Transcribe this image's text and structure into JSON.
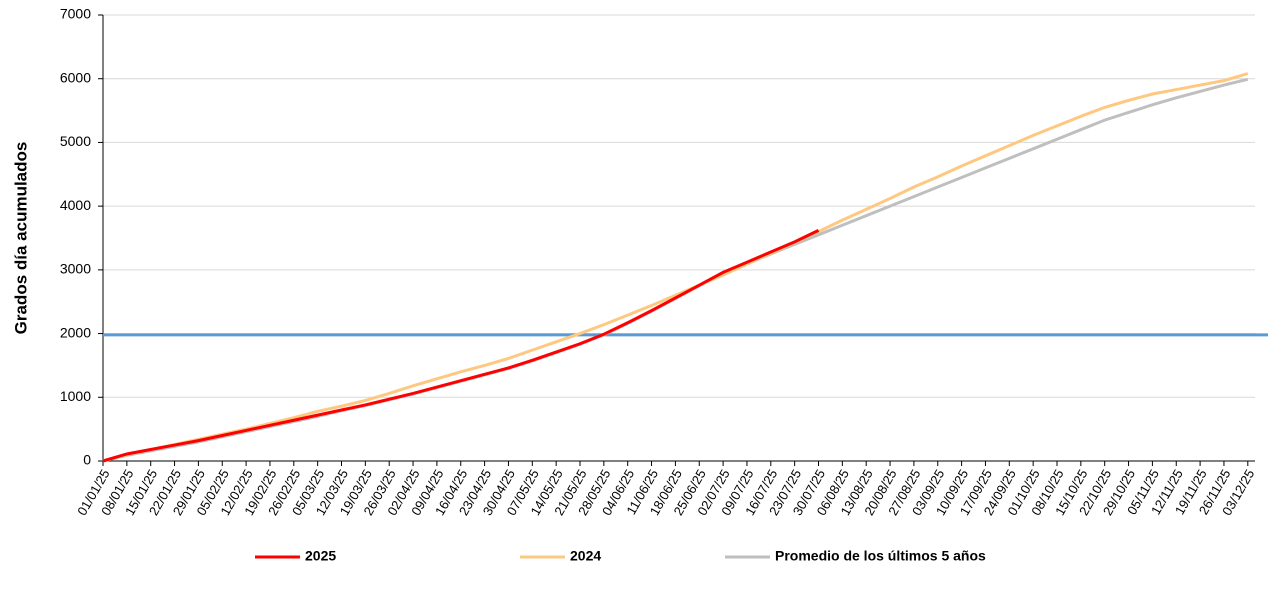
{
  "chart_data": {
    "type": "line",
    "ylabel": "Grados día acumulados",
    "categories": [
      "01/01/25",
      "08/01/25",
      "15/01/25",
      "22/01/25",
      "29/01/25",
      "05/02/25",
      "12/02/25",
      "19/02/25",
      "26/02/25",
      "05/03/25",
      "12/03/25",
      "19/03/25",
      "26/03/25",
      "02/04/25",
      "09/04/25",
      "16/04/25",
      "23/04/25",
      "30/04/25",
      "07/05/25",
      "14/05/25",
      "21/05/25",
      "28/05/25",
      "04/06/25",
      "11/06/25",
      "18/06/25",
      "25/06/25",
      "02/07/25",
      "09/07/25",
      "16/07/25",
      "23/07/25",
      "30/07/25",
      "06/08/25",
      "13/08/25",
      "20/08/25",
      "27/08/25",
      "03/09/25",
      "10/09/25",
      "17/09/25",
      "24/09/25",
      "01/10/25",
      "08/10/25",
      "15/10/25",
      "22/10/25",
      "29/10/25",
      "05/11/25",
      "12/11/25",
      "19/11/25",
      "26/11/25",
      "03/12/25"
    ],
    "series": [
      {
        "name": "2025",
        "color": "#ff0000",
        "values": [
          0,
          110,
          180,
          250,
          320,
          400,
          480,
          560,
          640,
          720,
          800,
          880,
          970,
          1060,
          1160,
          1260,
          1360,
          1460,
          1580,
          1710,
          1840,
          1990,
          2170,
          2360,
          2560,
          2760,
          2960,
          3120,
          3280,
          3440,
          3620,
          null,
          null,
          null,
          null,
          null,
          null,
          null,
          null,
          null,
          null,
          null,
          null,
          null,
          null,
          null,
          null,
          null,
          null
        ]
      },
      {
        "name": "2024",
        "color": "#ffc880",
        "values": [
          0,
          100,
          180,
          260,
          340,
          420,
          500,
          590,
          680,
          780,
          860,
          950,
          1060,
          1180,
          1290,
          1400,
          1500,
          1610,
          1740,
          1870,
          2000,
          2140,
          2290,
          2440,
          2600,
          2760,
          2920,
          3090,
          3260,
          3430,
          3600,
          3780,
          3950,
          4120,
          4300,
          4460,
          4630,
          4790,
          4950,
          5110,
          5260,
          5410,
          5550,
          5660,
          5760,
          5830,
          5900,
          5970,
          6080
        ]
      },
      {
        "name": "Promedio de los últimos 5 años",
        "color": "#bfbfbf",
        "values": [
          0,
          90,
          160,
          230,
          300,
          380,
          460,
          540,
          620,
          700,
          790,
          870,
          960,
          1050,
          1150,
          1250,
          1350,
          1450,
          1570,
          1700,
          1830,
          1980,
          2160,
          2350,
          2550,
          2750,
          2950,
          3100,
          3250,
          3400,
          3550,
          3700,
          3850,
          4000,
          4150,
          4300,
          4450,
          4600,
          4750,
          4900,
          5050,
          5200,
          5350,
          5470,
          5590,
          5700,
          5800,
          5900,
          5990
        ]
      }
    ],
    "threshold": 1980,
    "threshold_color": "#5b9bd5",
    "ylim": [
      0,
      7000
    ],
    "yticks": [
      0,
      1000,
      2000,
      3000,
      4000,
      5000,
      6000,
      7000
    ],
    "grid": true,
    "legend": "bottom"
  }
}
